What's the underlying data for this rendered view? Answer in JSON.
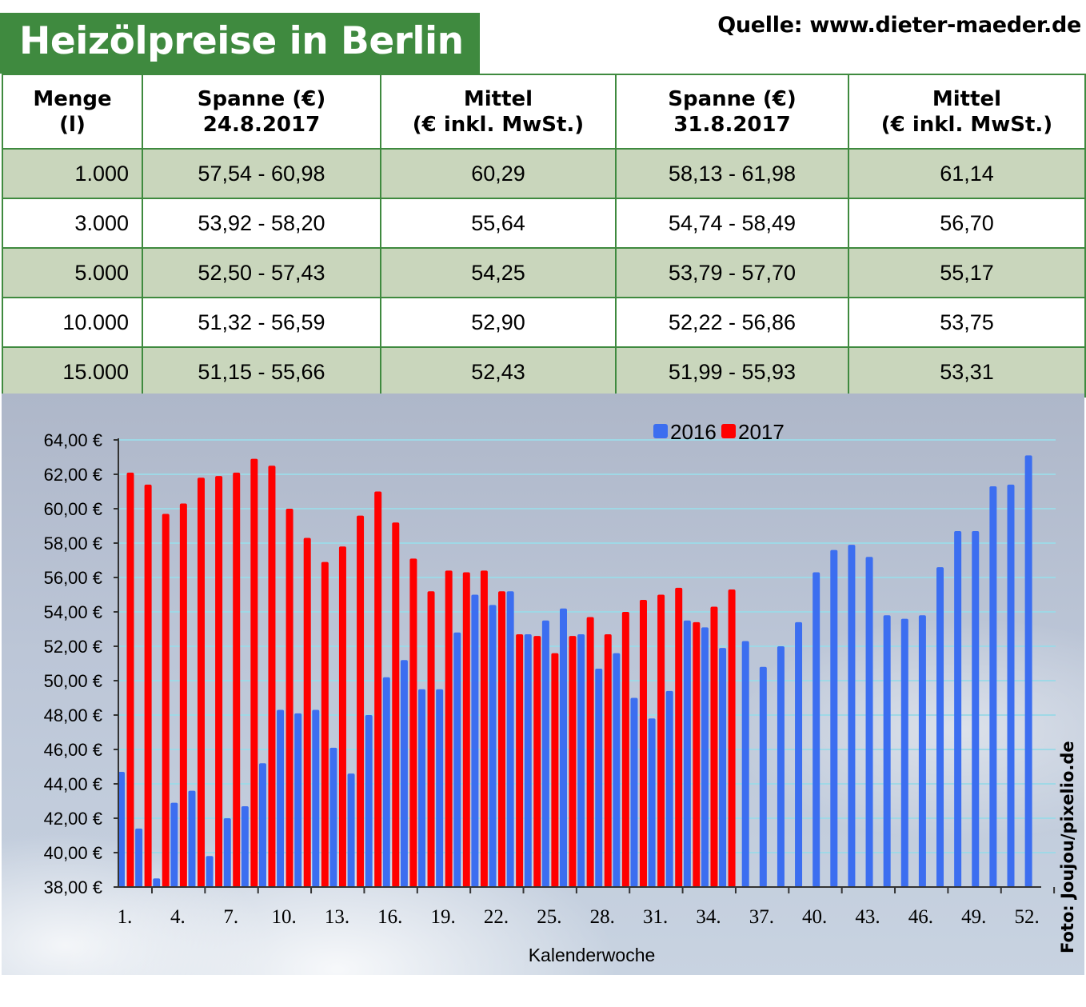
{
  "title": "Heizölpreise in Berlin",
  "source": "Quelle: www.dieter-maeder.de",
  "table": {
    "headers": [
      [
        "Menge",
        "(l)"
      ],
      [
        "Spanne (€)",
        "24.8.2017"
      ],
      [
        "Mittel",
        "(€ inkl. MwSt.)"
      ],
      [
        "Spanne (€)",
        "31.8.2017"
      ],
      [
        "Mittel",
        "(€ inkl. MwSt.)"
      ]
    ],
    "rows": [
      [
        "1.000",
        "57,54 - 60,98",
        "60,29",
        "58,13 - 61,98",
        "61,14"
      ],
      [
        "3.000",
        "53,92 - 58,20",
        "55,64",
        "54,74 - 58,49",
        "56,70"
      ],
      [
        "5.000",
        "52,50 - 57,43",
        "54,25",
        "53,79 - 57,70",
        "55,17"
      ],
      [
        "10.000",
        "51,32 - 56,59",
        "52,90",
        "52,22 - 56,86",
        "53,75"
      ],
      [
        "15.000",
        "51,15 - 55,66",
        "52,43",
        "51,99 - 55,93",
        "53,31"
      ]
    ]
  },
  "chart_data": {
    "type": "bar",
    "xlabel": "Kalenderwoche",
    "ylabel": "",
    "ylim": [
      38,
      64
    ],
    "yticks": [
      38,
      40,
      42,
      44,
      46,
      48,
      50,
      52,
      54,
      56,
      58,
      60,
      62,
      64
    ],
    "ytick_labels": [
      "38,00 €",
      "40,00 €",
      "42,00 €",
      "44,00 €",
      "46,00 €",
      "48,00 €",
      "50,00 €",
      "52,00 €",
      "54,00 €",
      "56,00 €",
      "58,00 €",
      "60,00 €",
      "62,00 €",
      "64,00 €"
    ],
    "xtick_labels": [
      "1.",
      "4.",
      "7.",
      "10.",
      "13.",
      "16.",
      "19.",
      "22.",
      "25.",
      "28.",
      "31.",
      "34.",
      "37.",
      "40.",
      "43.",
      "46.",
      "49.",
      "52."
    ],
    "xtick_weeks": [
      1,
      4,
      7,
      10,
      13,
      16,
      19,
      22,
      25,
      28,
      31,
      34,
      37,
      40,
      43,
      46,
      49,
      52
    ],
    "grid": true,
    "legend_position": "top",
    "series": [
      {
        "name": "2016",
        "color": "#3c6ef0",
        "values": [
          44.7,
          41.4,
          38.5,
          42.9,
          43.6,
          39.8,
          42.0,
          42.7,
          45.2,
          48.3,
          48.1,
          48.3,
          46.1,
          44.6,
          48.0,
          50.2,
          51.2,
          49.5,
          49.5,
          52.8,
          55.0,
          54.4,
          55.2,
          52.7,
          53.5,
          54.2,
          52.7,
          50.7,
          51.6,
          49.0,
          47.8,
          49.4,
          53.5,
          53.1,
          51.9,
          52.3,
          50.8,
          52.0,
          53.4,
          56.3,
          57.6,
          57.9,
          57.2,
          53.8,
          53.6,
          53.8,
          56.6,
          58.7,
          58.7,
          61.3,
          61.4,
          63.1
        ]
      },
      {
        "name": "2017",
        "color": "#ff0000",
        "values": [
          62.1,
          61.4,
          59.7,
          60.3,
          61.8,
          61.9,
          62.1,
          62.9,
          62.5,
          60.0,
          58.3,
          56.9,
          57.8,
          59.6,
          61.0,
          59.2,
          57.1,
          55.2,
          56.4,
          56.3,
          56.4,
          55.2,
          52.7,
          52.6,
          51.6,
          52.6,
          53.7,
          52.7,
          54.0,
          54.7,
          55.0,
          55.4,
          53.4,
          54.3,
          55.3
        ]
      }
    ]
  },
  "photo_credit": "Foto: Joujou/pixelio.de"
}
